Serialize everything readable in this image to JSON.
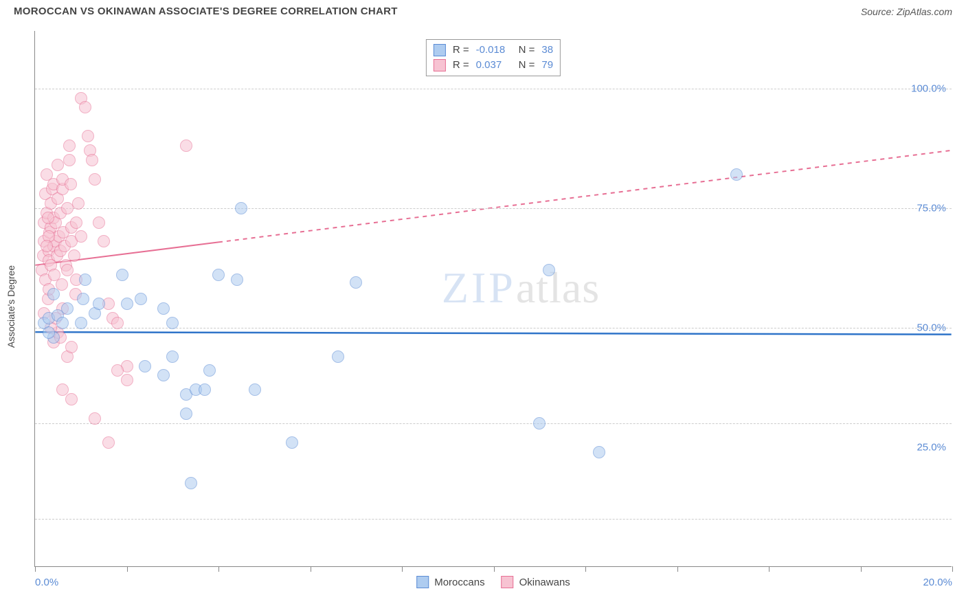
{
  "title": "MOROCCAN VS OKINAWAN ASSOCIATE'S DEGREE CORRELATION CHART",
  "source": "Source: ZipAtlas.com",
  "watermark": {
    "part1": "ZIP",
    "part2": "atlas"
  },
  "yaxis_label": "Associate's Degree",
  "chart": {
    "type": "scatter",
    "xlim": [
      0,
      20
    ],
    "ylim": [
      0,
      112
    ],
    "xtick_positions": [
      0,
      2,
      4,
      6,
      8,
      10,
      12,
      14,
      16,
      18,
      20
    ],
    "xtick_labels": {
      "0": "0.0%",
      "20": "20.0%"
    },
    "y_gridlines": [
      10,
      30,
      50,
      75,
      100
    ],
    "ytick_labels": {
      "25": "25.0%",
      "50": "50.0%",
      "75": "75.0%",
      "100": "100.0%"
    },
    "background_color": "#ffffff",
    "grid_color": "#cccccc",
    "axis_color": "#888888",
    "tick_label_color": "#5b8bd4",
    "point_radius": 9,
    "point_opacity": 0.55,
    "series": [
      {
        "name": "Moroccans",
        "fill": "#aeccf0",
        "stroke": "#5b8bd4",
        "r_value": "-0.018",
        "n_value": "38",
        "trend": {
          "y_at_x0": 49,
          "y_at_x20": 48.5,
          "stroke": "#2f74c9",
          "width": 2.5,
          "dash": "none"
        },
        "points": [
          [
            0.2,
            51
          ],
          [
            0.3,
            52
          ],
          [
            0.4,
            48
          ],
          [
            0.5,
            52.5
          ],
          [
            0.6,
            51
          ],
          [
            0.7,
            54
          ],
          [
            1.0,
            51
          ],
          [
            1.05,
            56
          ],
          [
            1.1,
            60
          ],
          [
            1.3,
            53
          ],
          [
            1.4,
            55
          ],
          [
            1.9,
            61
          ],
          [
            2.0,
            55
          ],
          [
            2.3,
            56
          ],
          [
            2.8,
            54
          ],
          [
            3.0,
            51
          ],
          [
            2.4,
            42
          ],
          [
            2.8,
            40
          ],
          [
            3.0,
            44
          ],
          [
            3.3,
            36
          ],
          [
            3.5,
            37
          ],
          [
            3.7,
            37
          ],
          [
            3.8,
            41
          ],
          [
            4.0,
            61
          ],
          [
            4.4,
            60
          ],
          [
            4.8,
            37
          ],
          [
            4.5,
            75
          ],
          [
            5.6,
            26
          ],
          [
            6.6,
            44
          ],
          [
            7.0,
            59.5
          ],
          [
            3.3,
            32
          ],
          [
            3.4,
            17.5
          ],
          [
            11.0,
            30
          ],
          [
            11.2,
            62
          ],
          [
            12.3,
            24
          ],
          [
            15.3,
            82
          ],
          [
            0.4,
            57
          ],
          [
            0.3,
            49
          ]
        ]
      },
      {
        "name": "Okinawans",
        "fill": "#f7c3d2",
        "stroke": "#e76f94",
        "r_value": "0.037",
        "n_value": "79",
        "trend": {
          "y_at_x0": 63,
          "y_at_x20": 87,
          "stroke": "#e76f94",
          "width": 2,
          "solid_until_x": 4.0,
          "dash": "6,6"
        },
        "points": [
          [
            0.15,
            62
          ],
          [
            0.18,
            65
          ],
          [
            0.2,
            68
          ],
          [
            0.2,
            72
          ],
          [
            0.22,
            60
          ],
          [
            0.22,
            78
          ],
          [
            0.25,
            82
          ],
          [
            0.25,
            74
          ],
          [
            0.28,
            56
          ],
          [
            0.3,
            66
          ],
          [
            0.3,
            64
          ],
          [
            0.3,
            58
          ],
          [
            0.32,
            70
          ],
          [
            0.35,
            71
          ],
          [
            0.35,
            76
          ],
          [
            0.35,
            63
          ],
          [
            0.38,
            79
          ],
          [
            0.4,
            73
          ],
          [
            0.4,
            67
          ],
          [
            0.4,
            80
          ],
          [
            0.42,
            61
          ],
          [
            0.45,
            68
          ],
          [
            0.45,
            72
          ],
          [
            0.48,
            65
          ],
          [
            0.5,
            77
          ],
          [
            0.5,
            84
          ],
          [
            0.52,
            69
          ],
          [
            0.55,
            74
          ],
          [
            0.55,
            66
          ],
          [
            0.58,
            59
          ],
          [
            0.6,
            79
          ],
          [
            0.6,
            81
          ],
          [
            0.62,
            70
          ],
          [
            0.65,
            67
          ],
          [
            0.68,
            63
          ],
          [
            0.7,
            75
          ],
          [
            0.7,
            62
          ],
          [
            0.75,
            88
          ],
          [
            0.75,
            85
          ],
          [
            0.78,
            80
          ],
          [
            0.8,
            71
          ],
          [
            0.8,
            68
          ],
          [
            0.85,
            65
          ],
          [
            0.88,
            57
          ],
          [
            0.9,
            60
          ],
          [
            0.9,
            72
          ],
          [
            0.95,
            76
          ],
          [
            1.0,
            69
          ],
          [
            1.0,
            98
          ],
          [
            1.1,
            96
          ],
          [
            1.15,
            90
          ],
          [
            1.2,
            87
          ],
          [
            1.25,
            85
          ],
          [
            1.3,
            81
          ],
          [
            1.4,
            72
          ],
          [
            1.5,
            68
          ],
          [
            1.6,
            55
          ],
          [
            1.7,
            52
          ],
          [
            1.8,
            51
          ],
          [
            2.0,
            39
          ],
          [
            2.0,
            42
          ],
          [
            0.4,
            47
          ],
          [
            0.5,
            49
          ],
          [
            0.6,
            54
          ],
          [
            0.7,
            44
          ],
          [
            0.8,
            46
          ],
          [
            0.6,
            37
          ],
          [
            0.8,
            35
          ],
          [
            1.3,
            31
          ],
          [
            1.6,
            26
          ],
          [
            1.8,
            41
          ],
          [
            3.3,
            88
          ],
          [
            0.2,
            53
          ],
          [
            0.35,
            50
          ],
          [
            0.45,
            52
          ],
          [
            0.55,
            48
          ],
          [
            0.3,
            69
          ],
          [
            0.25,
            67
          ],
          [
            0.28,
            73
          ]
        ]
      }
    ]
  },
  "r_legend": {
    "rows": [
      {
        "swatch_fill": "#aeccf0",
        "swatch_stroke": "#5b8bd4",
        "r_label": "R =",
        "r": "-0.018",
        "n_label": "N =",
        "n": "38"
      },
      {
        "swatch_fill": "#f7c3d2",
        "swatch_stroke": "#e76f94",
        "r_label": "R =",
        "r": "0.037",
        "n_label": "N =",
        "n": "79"
      }
    ]
  },
  "bottom_legend": [
    {
      "swatch_fill": "#aeccf0",
      "swatch_stroke": "#5b8bd4",
      "label": "Moroccans"
    },
    {
      "swatch_fill": "#f7c3d2",
      "swatch_stroke": "#e76f94",
      "label": "Okinawans"
    }
  ]
}
